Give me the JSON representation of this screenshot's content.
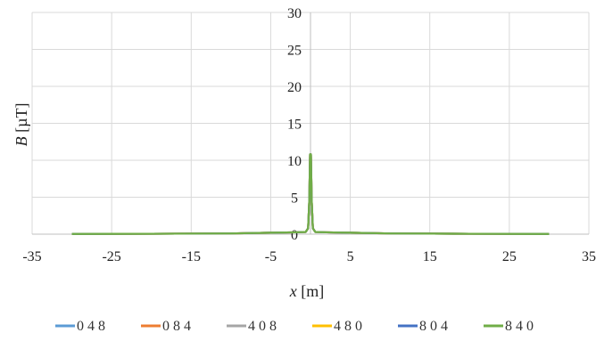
{
  "chart_data": {
    "type": "line",
    "title": "",
    "xlabel_var": "x",
    "xlabel_unit": " [m]",
    "ylabel_var": "B",
    "ylabel_unit": " [µT]",
    "xlim": [
      -35,
      35
    ],
    "ylim": [
      0,
      30
    ],
    "xticks": [
      -35,
      -25,
      -15,
      -5,
      5,
      15,
      25,
      35
    ],
    "yticks": [
      0,
      5,
      10,
      15,
      20,
      25,
      30
    ],
    "grid": true,
    "legend_position": "bottom",
    "series": [
      {
        "name": "0 4 8",
        "color": "#5B9BD5",
        "points": [
          [
            -30,
            0.03
          ],
          [
            -20,
            0.05
          ],
          [
            -10,
            0.1
          ],
          [
            -5,
            0.2
          ],
          [
            -2,
            0.25
          ],
          [
            -0.6,
            0.3
          ],
          [
            -0.3,
            0.8
          ],
          [
            -0.15,
            4.5
          ],
          [
            -0.05,
            10.8
          ],
          [
            0.05,
            10.8
          ],
          [
            0.15,
            4.5
          ],
          [
            0.3,
            0.8
          ],
          [
            0.6,
            0.3
          ],
          [
            2,
            0.25
          ],
          [
            5,
            0.2
          ],
          [
            10,
            0.1
          ],
          [
            20,
            0.05
          ],
          [
            30,
            0.03
          ]
        ]
      },
      {
        "name": "0 8 4",
        "color": "#ED7D31",
        "points": [
          [
            -30,
            0.03
          ],
          [
            -20,
            0.05
          ],
          [
            -10,
            0.1
          ],
          [
            -5,
            0.2
          ],
          [
            -2,
            0.25
          ],
          [
            -0.6,
            0.3
          ],
          [
            -0.3,
            0.8
          ],
          [
            -0.15,
            4.5
          ],
          [
            -0.05,
            10.8
          ],
          [
            0.05,
            10.8
          ],
          [
            0.15,
            4.5
          ],
          [
            0.3,
            0.8
          ],
          [
            0.6,
            0.3
          ],
          [
            2,
            0.25
          ],
          [
            5,
            0.2
          ],
          [
            10,
            0.1
          ],
          [
            20,
            0.05
          ],
          [
            30,
            0.03
          ]
        ]
      },
      {
        "name": "4 0 8",
        "color": "#A5A5A5",
        "points": [
          [
            -30,
            0.03
          ],
          [
            -20,
            0.05
          ],
          [
            -10,
            0.1
          ],
          [
            -5,
            0.2
          ],
          [
            -2,
            0.25
          ],
          [
            -0.6,
            0.3
          ],
          [
            -0.3,
            0.8
          ],
          [
            -0.15,
            4.5
          ],
          [
            -0.05,
            10.8
          ],
          [
            0.05,
            10.8
          ],
          [
            0.15,
            4.5
          ],
          [
            0.3,
            0.8
          ],
          [
            0.6,
            0.3
          ],
          [
            2,
            0.25
          ],
          [
            5,
            0.2
          ],
          [
            10,
            0.1
          ],
          [
            20,
            0.05
          ],
          [
            30,
            0.03
          ]
        ]
      },
      {
        "name": "4 8 0",
        "color": "#FFC000",
        "points": [
          [
            -30,
            0.03
          ],
          [
            -20,
            0.05
          ],
          [
            -10,
            0.1
          ],
          [
            -5,
            0.2
          ],
          [
            -2,
            0.25
          ],
          [
            -0.6,
            0.3
          ],
          [
            -0.3,
            0.8
          ],
          [
            -0.15,
            4.5
          ],
          [
            -0.05,
            10.8
          ],
          [
            0.05,
            10.8
          ],
          [
            0.15,
            4.5
          ],
          [
            0.3,
            0.8
          ],
          [
            0.6,
            0.3
          ],
          [
            2,
            0.25
          ],
          [
            5,
            0.2
          ],
          [
            10,
            0.1
          ],
          [
            20,
            0.05
          ],
          [
            30,
            0.03
          ]
        ]
      },
      {
        "name": "8 0 4",
        "color": "#4472C4",
        "points": [
          [
            -30,
            0.03
          ],
          [
            -20,
            0.05
          ],
          [
            -10,
            0.1
          ],
          [
            -5,
            0.2
          ],
          [
            -2,
            0.25
          ],
          [
            -0.6,
            0.3
          ],
          [
            -0.3,
            0.8
          ],
          [
            -0.15,
            4.5
          ],
          [
            -0.05,
            10.8
          ],
          [
            0.05,
            10.8
          ],
          [
            0.15,
            4.5
          ],
          [
            0.3,
            0.8
          ],
          [
            0.6,
            0.3
          ],
          [
            2,
            0.25
          ],
          [
            5,
            0.2
          ],
          [
            10,
            0.1
          ],
          [
            20,
            0.05
          ],
          [
            30,
            0.03
          ]
        ]
      },
      {
        "name": "8 4 0",
        "color": "#70AD47",
        "points": [
          [
            -30,
            0.03
          ],
          [
            -20,
            0.05
          ],
          [
            -10,
            0.1
          ],
          [
            -5,
            0.2
          ],
          [
            -2,
            0.25
          ],
          [
            -0.6,
            0.3
          ],
          [
            -0.3,
            0.8
          ],
          [
            -0.15,
            4.5
          ],
          [
            -0.05,
            10.8
          ],
          [
            0.05,
            10.8
          ],
          [
            0.15,
            4.5
          ],
          [
            0.3,
            0.8
          ],
          [
            0.6,
            0.3
          ],
          [
            2,
            0.25
          ],
          [
            5,
            0.2
          ],
          [
            10,
            0.1
          ],
          [
            20,
            0.05
          ],
          [
            30,
            0.03
          ]
        ]
      }
    ]
  }
}
